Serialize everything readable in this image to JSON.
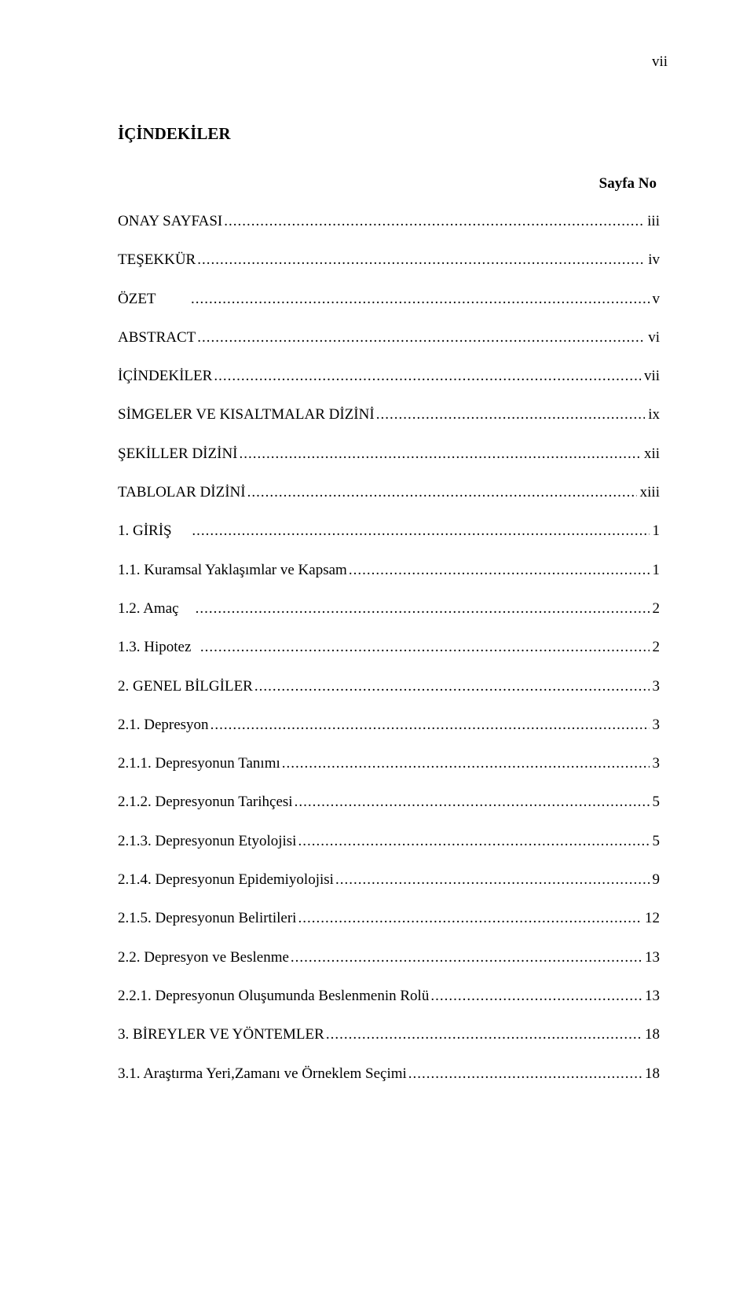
{
  "page_number_label": "vii",
  "title": "İÇİNDEKİLER",
  "subtitle": "Sayfa No",
  "font_family": "Times New Roman",
  "text_color": "#000000",
  "background_color": "#ffffff",
  "entries": [
    {
      "label": "ONAY SAYFASI",
      "page": "iii"
    },
    {
      "label": "TEŞEKKÜR",
      "page": "iv"
    },
    {
      "label": "ÖZET",
      "page": "v",
      "gap_after_label": "         "
    },
    {
      "label": "ABSTRACT",
      "page": "vi"
    },
    {
      "label": "İÇİNDEKİLER",
      "page": "vii"
    },
    {
      "label": "SİMGELER VE KISALTMALAR DİZİNİ",
      "page": "ix"
    },
    {
      "label": "ŞEKİLLER DİZİNİ",
      "page": "xii"
    },
    {
      "label": "TABLOLAR DİZİNİ",
      "page": "xiii"
    },
    {
      "label": "1. GİRİŞ",
      "page": "1",
      "gap_after_label": "     "
    },
    {
      "label": "1.1. Kuramsal Yaklaşımlar ve Kapsam",
      "page": "1"
    },
    {
      "label": "1.2. Amaç",
      "page": "2",
      "gap_after_label": "    "
    },
    {
      "label": "1.3. Hipotez",
      "page": "2",
      "gap_after_label": "  "
    },
    {
      "label": "2. GENEL BİLGİLER",
      "page": "3"
    },
    {
      "label": "2.1. Depresyon",
      "page": "3"
    },
    {
      "label": "2.1.1. Depresyonun Tanımı",
      "page": "3"
    },
    {
      "label": "2.1.2. Depresyonun Tarihçesi",
      "page": "5"
    },
    {
      "label": "2.1.3. Depresyonun Etyolojisi",
      "page": "5"
    },
    {
      "label": "2.1.4. Depresyonun Epidemiyolojisi",
      "page": "9"
    },
    {
      "label": "2.1.5. Depresyonun Belirtileri",
      "page": "12"
    },
    {
      "label": "2.2. Depresyon ve Beslenme",
      "page": "13"
    },
    {
      "label": "2.2.1. Depresyonun Oluşumunda Beslenmenin Rolü",
      "page": "13"
    },
    {
      "label": "3. BİREYLER VE YÖNTEMLER",
      "page": "18"
    },
    {
      "label": "3.1. Araştırma Yeri,Zamanı ve Örneklem Seçimi",
      "page": "18"
    }
  ]
}
